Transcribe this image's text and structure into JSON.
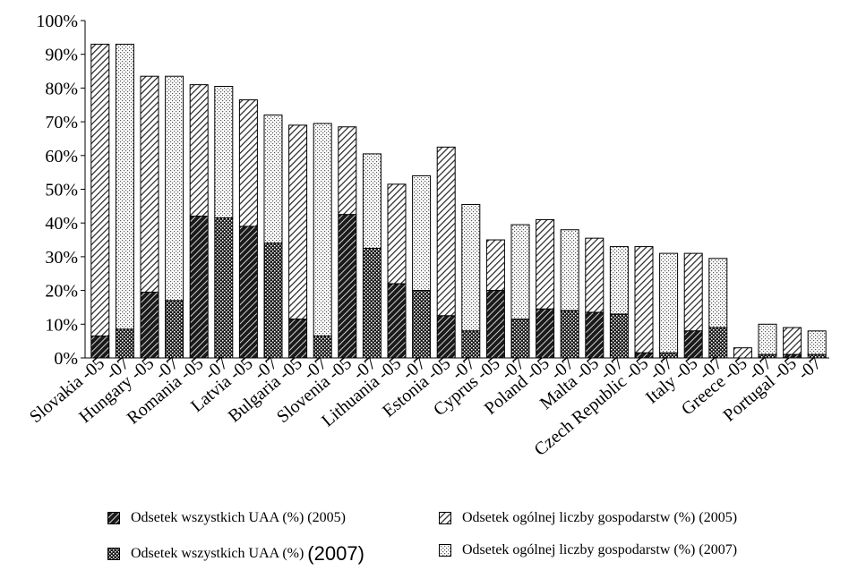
{
  "chart_data": {
    "type": "bar",
    "ylim": [
      0,
      100
    ],
    "yticks": [
      "0%",
      "10%",
      "20%",
      "30%",
      "40%",
      "50%",
      "60%",
      "70%",
      "80%",
      "90%",
      "100%"
    ],
    "grid": false,
    "legend_placement": "bottom",
    "bars": [
      {
        "label": "Slovakia -05",
        "year": "2005",
        "uaa": 6.5,
        "holdings": 93
      },
      {
        "label": "-07",
        "year": "2007",
        "uaa": 8.5,
        "holdings": 93
      },
      {
        "label": "Hungary -05",
        "year": "2005",
        "uaa": 19.5,
        "holdings": 83.5
      },
      {
        "label": "-07",
        "year": "2007",
        "uaa": 17,
        "holdings": 83.5
      },
      {
        "label": "Romania -05",
        "year": "2005",
        "uaa": 42,
        "holdings": 81
      },
      {
        "label": "-07",
        "year": "2007",
        "uaa": 41.5,
        "holdings": 80.5
      },
      {
        "label": "Latvia -05",
        "year": "2005",
        "uaa": 39,
        "holdings": 76.5
      },
      {
        "label": "-07",
        "year": "2007",
        "uaa": 34,
        "holdings": 72
      },
      {
        "label": "Bulgaria -05",
        "year": "2005",
        "uaa": 11.5,
        "holdings": 69
      },
      {
        "label": "-07",
        "year": "2007",
        "uaa": 6.5,
        "holdings": 69.5
      },
      {
        "label": "Slovenia -05",
        "year": "2005",
        "uaa": 42.5,
        "holdings": 68.5
      },
      {
        "label": "-07",
        "year": "2007",
        "uaa": 32.5,
        "holdings": 60.5
      },
      {
        "label": "Lithuania -05",
        "year": "2005",
        "uaa": 22,
        "holdings": 51.5
      },
      {
        "label": "-07",
        "year": "2007",
        "uaa": 20,
        "holdings": 54
      },
      {
        "label": "Estonia -05",
        "year": "2005",
        "uaa": 12.5,
        "holdings": 62.5
      },
      {
        "label": "-07",
        "year": "2007",
        "uaa": 8,
        "holdings": 45.5
      },
      {
        "label": "Cyprus -05",
        "year": "2005",
        "uaa": 20,
        "holdings": 35
      },
      {
        "label": "-07",
        "year": "2007",
        "uaa": 11.5,
        "holdings": 39.5
      },
      {
        "label": "Poland -05",
        "year": "2005",
        "uaa": 14.5,
        "holdings": 41
      },
      {
        "label": "-07",
        "year": "2007",
        "uaa": 14,
        "holdings": 38
      },
      {
        "label": "Malta -05",
        "year": "2005",
        "uaa": 13.5,
        "holdings": 35.5
      },
      {
        "label": "-07",
        "year": "2007",
        "uaa": 13,
        "holdings": 33
      },
      {
        "label": "Czech Republic -05",
        "year": "2005",
        "uaa": 1.5,
        "holdings": 33
      },
      {
        "label": "-07",
        "year": "2007",
        "uaa": 1.5,
        "holdings": 31
      },
      {
        "label": "Italy -05",
        "year": "2005",
        "uaa": 8,
        "holdings": 31
      },
      {
        "label": "-07",
        "year": "2007",
        "uaa": 9,
        "holdings": 29.5
      },
      {
        "label": "Greece -05",
        "year": "2005",
        "uaa": 0,
        "holdings": 3
      },
      {
        "label": "-07",
        "year": "2007",
        "uaa": 1,
        "holdings": 10
      },
      {
        "label": "Portugal -05",
        "year": "2005",
        "uaa": 1,
        "holdings": 9
      },
      {
        "label": "-07",
        "year": "2007",
        "uaa": 1,
        "holdings": 8
      }
    ],
    "series": [
      {
        "name": "Odsetek wszystkich UAA (%) (2005)",
        "pattern": "hatch-dense"
      },
      {
        "name": "Odsetek ogólnej liczby gospodarstw (%) (2005)",
        "pattern": "hatch-diag"
      },
      {
        "name": "Odsetek wszystkich UAA (%)",
        "name_year": "(2007)",
        "pattern": "checker"
      },
      {
        "name": "Odsetek ogólnej liczby gospodarstw (%) (2007)",
        "pattern": "dots"
      }
    ]
  }
}
